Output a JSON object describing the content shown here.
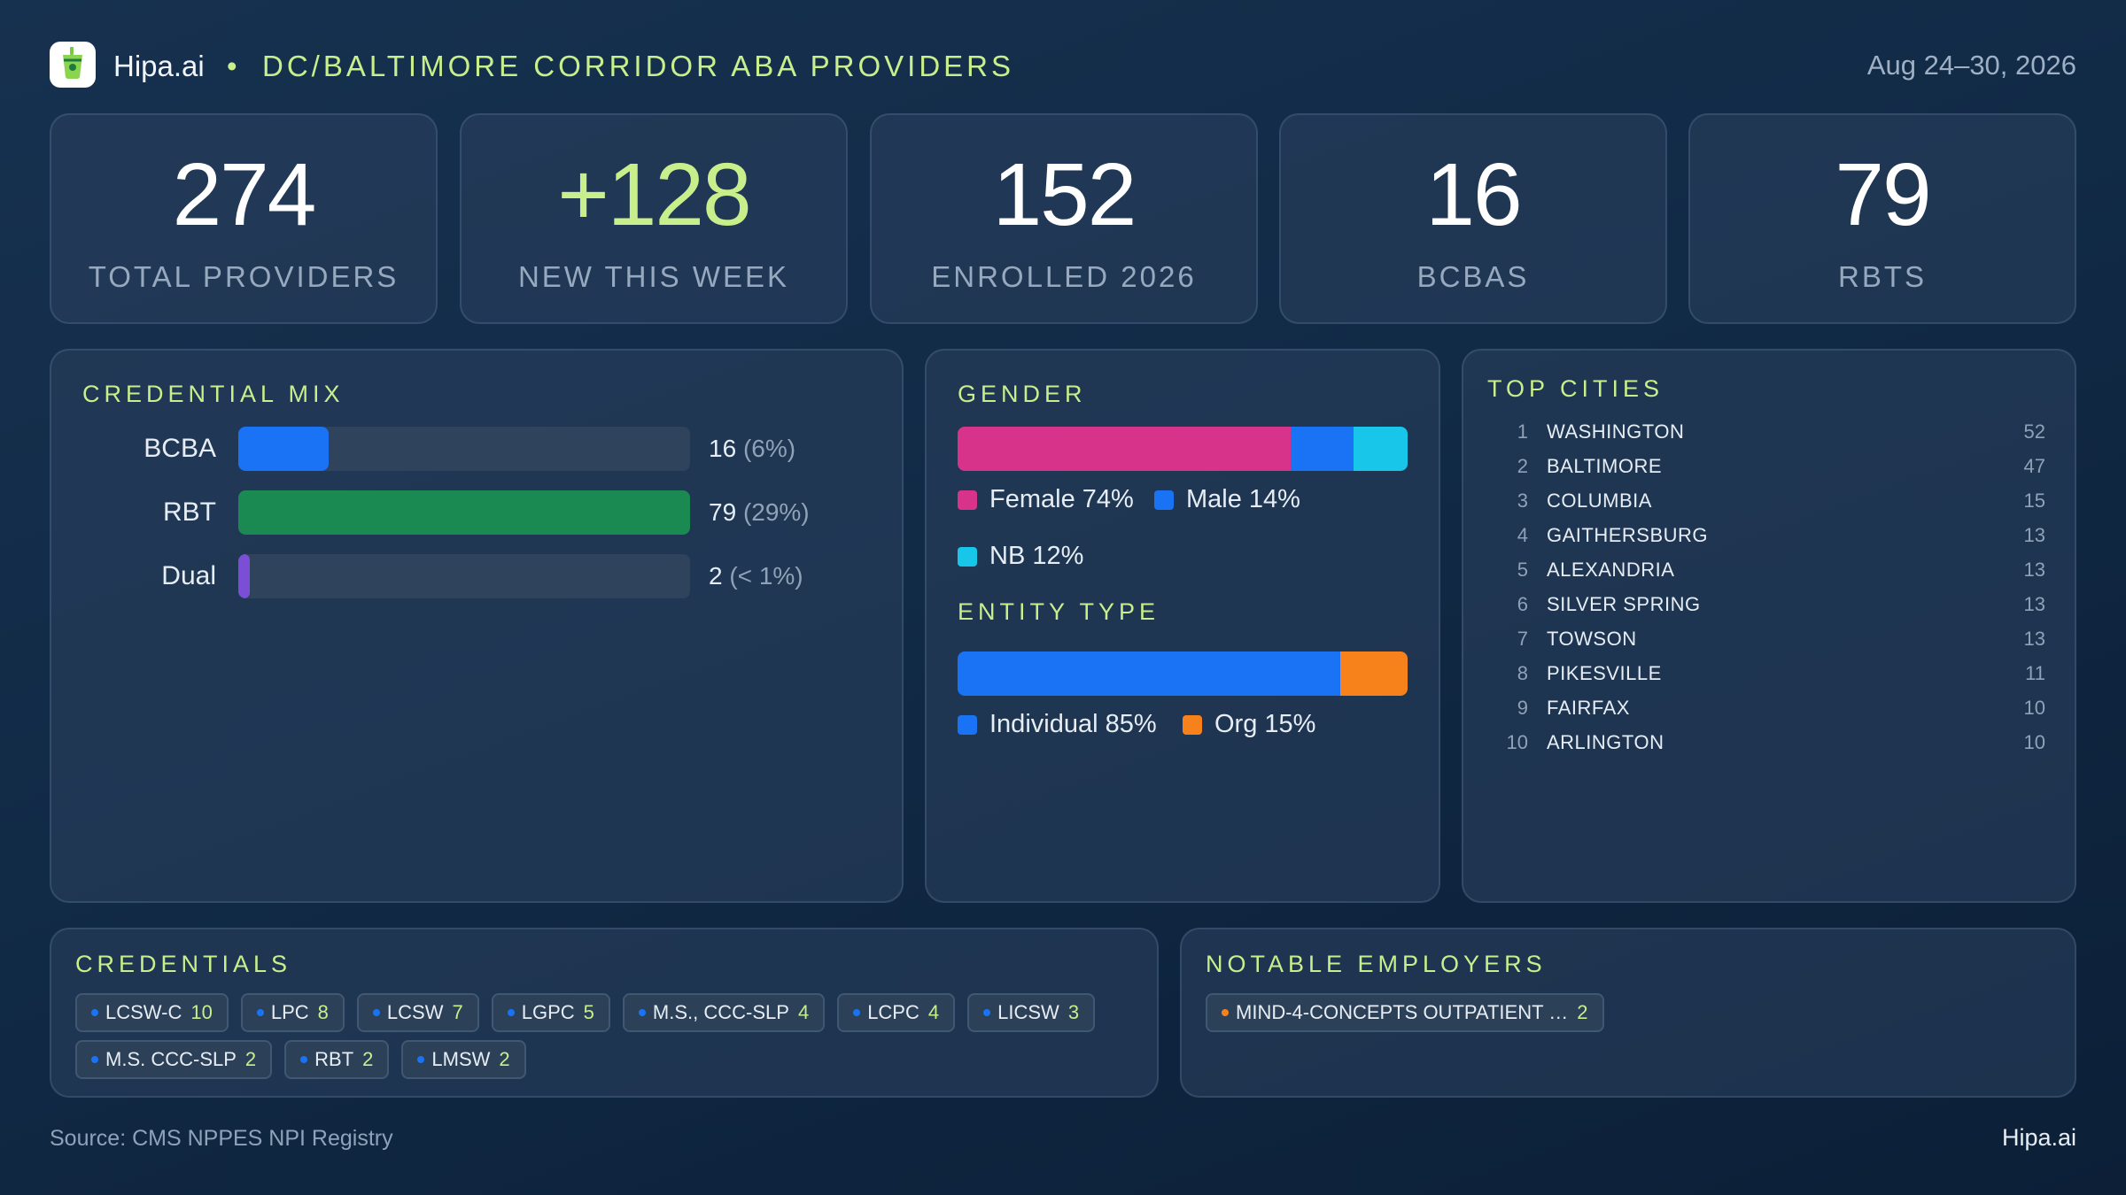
{
  "header": {
    "brand": "Hipa.ai",
    "separator": "•",
    "title": "DC/BALTIMORE CORRIDOR ABA PROVIDERS",
    "date_range": "Aug 24–30, 2026",
    "logo_icon": "cup-icon"
  },
  "kpis": [
    {
      "value": "274",
      "label": "TOTAL PROVIDERS"
    },
    {
      "value": "+128",
      "label": "NEW THIS WEEK"
    },
    {
      "value": "152",
      "label": "ENROLLED 2026"
    },
    {
      "value": "16",
      "label": "BCBAS"
    },
    {
      "value": "79",
      "label": "RBTS"
    }
  ],
  "credential_mix": {
    "title": "CREDENTIAL MIX",
    "rows": [
      {
        "label": "BCBA",
        "count": "16",
        "pct": "(6%)",
        "fraction": 0.2,
        "color": "#1a73f5"
      },
      {
        "label": "RBT",
        "count": "79",
        "pct": "(29%)",
        "fraction": 1.0,
        "color": "#1a8a52"
      },
      {
        "label": "Dual",
        "count": "2",
        "pct": "(< 1%)",
        "fraction": 0.025,
        "color": "#7a4fd6"
      }
    ]
  },
  "gender": {
    "title": "GENDER",
    "segments": [
      {
        "label": "Female 74%",
        "fraction": 0.74,
        "color": "#d8338a"
      },
      {
        "label": "Male 14%",
        "fraction": 0.14,
        "color": "#1a73f5"
      },
      {
        "label": "NB 12%",
        "fraction": 0.12,
        "color": "#18c6ea"
      }
    ]
  },
  "entity_type": {
    "title": "ENTITY TYPE",
    "segments": [
      {
        "label": "Individual 85%",
        "fraction": 0.85,
        "color": "#1a73f5"
      },
      {
        "label": "Org 15%",
        "fraction": 0.15,
        "color": "#f7821b"
      }
    ]
  },
  "top_cities": {
    "title": "TOP CITIES",
    "rows": [
      {
        "rank": "1",
        "name": "WASHINGTON",
        "count": "52"
      },
      {
        "rank": "2",
        "name": "BALTIMORE",
        "count": "47"
      },
      {
        "rank": "3",
        "name": "COLUMBIA",
        "count": "15"
      },
      {
        "rank": "4",
        "name": "GAITHERSBURG",
        "count": "13"
      },
      {
        "rank": "5",
        "name": "ALEXANDRIA",
        "count": "13"
      },
      {
        "rank": "6",
        "name": "SILVER SPRING",
        "count": "13"
      },
      {
        "rank": "7",
        "name": "TOWSON",
        "count": "13"
      },
      {
        "rank": "8",
        "name": "PIKESVILLE",
        "count": "11"
      },
      {
        "rank": "9",
        "name": "FAIRFAX",
        "count": "10"
      },
      {
        "rank": "10",
        "name": "ARLINGTON",
        "count": "10"
      }
    ]
  },
  "credentials": {
    "title": "CREDENTIALS",
    "chips": [
      {
        "label": "LCSW-C",
        "count": "10"
      },
      {
        "label": "LPC",
        "count": "8"
      },
      {
        "label": "LCSW",
        "count": "7"
      },
      {
        "label": "LGPC",
        "count": "5"
      },
      {
        "label": "M.S., CCC-SLP",
        "count": "4"
      },
      {
        "label": "LCPC",
        "count": "4"
      },
      {
        "label": "LICSW",
        "count": "3"
      },
      {
        "label": "M.S. CCC-SLP",
        "count": "2"
      },
      {
        "label": "RBT",
        "count": "2"
      },
      {
        "label": "LMSW",
        "count": "2"
      }
    ]
  },
  "employers": {
    "title": "NOTABLE EMPLOYERS",
    "chips": [
      {
        "label": "MIND-4-CONCEPTS OUTPATIENT …",
        "count": "2"
      }
    ]
  },
  "footer": {
    "source": "Source: CMS NPPES NPI Registry",
    "brand": "Hipa.ai"
  }
}
